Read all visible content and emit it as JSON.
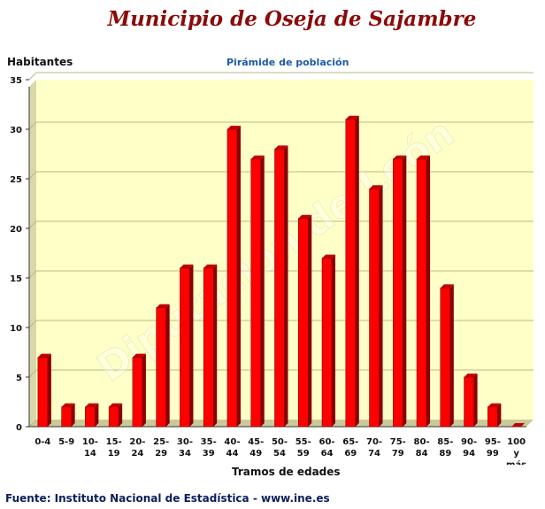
{
  "header": {
    "title": "Municipio de Oseja de Sajambre",
    "subtitle": "Pirámide de población"
  },
  "watermark": "Diputación de León",
  "footer": {
    "source": "Fuente: Instituto Nacional de Estadística - www.ine.es"
  },
  "colors": {
    "bar": "#ff0000",
    "bar_side": "#8a0000",
    "bar_top": "#c40000",
    "plot_background": "#ffffc8",
    "title": "#8b0a0a",
    "subtitle": "#1f5aa8"
  },
  "chart_data": {
    "type": "bar",
    "title": "Pirámide de población",
    "xlabel": "Tramos de edades",
    "ylabel": "Habitantes",
    "ylim": [
      0,
      35
    ],
    "yticks": [
      0,
      5,
      10,
      15,
      20,
      25,
      30,
      35
    ],
    "grid": true,
    "legend": "none",
    "categories": [
      [
        "0-4"
      ],
      [
        "5-9"
      ],
      [
        "10-",
        "14"
      ],
      [
        "15-",
        "19"
      ],
      [
        "20-",
        "24"
      ],
      [
        "25-",
        "29"
      ],
      [
        "30-",
        "34"
      ],
      [
        "35-",
        "39"
      ],
      [
        "40-",
        "44"
      ],
      [
        "45-",
        "49"
      ],
      [
        "50-",
        "54"
      ],
      [
        "55-",
        "59"
      ],
      [
        "60-",
        "64"
      ],
      [
        "65-",
        "69"
      ],
      [
        "70-",
        "74"
      ],
      [
        "75-",
        "79"
      ],
      [
        "80-",
        "84"
      ],
      [
        "85-",
        "89"
      ],
      [
        "90-",
        "94"
      ],
      [
        "95-",
        "99"
      ],
      [
        "100",
        "y",
        "más"
      ]
    ],
    "values": [
      7,
      2,
      2,
      2,
      7,
      12,
      16,
      16,
      30,
      27,
      28,
      21,
      17,
      31,
      24,
      27,
      27,
      14,
      5,
      2,
      0
    ]
  }
}
